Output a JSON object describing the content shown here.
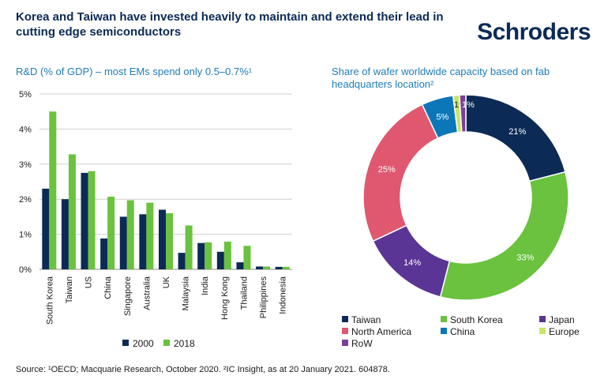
{
  "header": {
    "title": "Korea and Taiwan have invested heavily to maintain and extend their lead in cutting edge semiconductors",
    "logo": "Schroders"
  },
  "colors": {
    "navy": "#0b2a55",
    "green": "#6ac23f",
    "purple": "#5a3595",
    "pink": "#e05870",
    "blue": "#0b77b8",
    "lime": "#c9e56b",
    "violet": "#7b4098"
  },
  "chart_data": [
    {
      "type": "bar",
      "title": "R&D (% of GDP) – most EMs spend only 0.5–0.7%¹",
      "categories": [
        "South Korea",
        "Taiwan",
        "US",
        "China",
        "Singapore",
        "Australia",
        "UK",
        "Malaysia",
        "India",
        "Hong Kong",
        "Thailand",
        "Philippines",
        "Indonesia"
      ],
      "series": [
        {
          "name": "2000",
          "values": [
            2.3,
            2.0,
            2.75,
            0.88,
            1.5,
            1.57,
            1.7,
            0.47,
            0.75,
            0.5,
            0.2,
            0.08,
            0.07
          ]
        },
        {
          "name": "2018",
          "values": [
            4.5,
            3.28,
            2.8,
            2.07,
            1.97,
            1.9,
            1.6,
            1.25,
            0.77,
            0.79,
            0.67,
            0.08,
            0.07
          ]
        }
      ],
      "y_ticks": [
        "0%",
        "1%",
        "2%",
        "3%",
        "4%",
        "5%"
      ],
      "ylim": [
        0,
        5
      ],
      "grid": true,
      "legend": "bottom"
    },
    {
      "type": "pie",
      "title": "Share of wafer worldwide capacity based on fab headquarters location²",
      "slices": [
        {
          "name": "Taiwan",
          "value": 21,
          "label": "21%"
        },
        {
          "name": "South Korea",
          "value": 33,
          "label": "33%"
        },
        {
          "name": "Japan",
          "value": 14,
          "label": "14%"
        },
        {
          "name": "North America",
          "value": 25,
          "label": "25%"
        },
        {
          "name": "China",
          "value": 5,
          "label": "5%"
        },
        {
          "name": "Europe",
          "value": 1,
          "label": "1%"
        },
        {
          "name": "RoW",
          "value": 1,
          "label": "1%"
        }
      ],
      "legend": "bottom"
    }
  ],
  "footer": {
    "source": "Source: ¹OECD; Macquarie Research, October 2020. ²IC Insight, as at 20 January 2021. 604878."
  }
}
